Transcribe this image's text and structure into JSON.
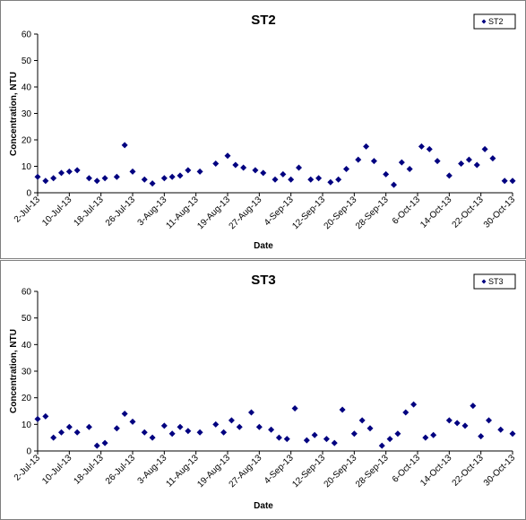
{
  "chart_data": [
    {
      "type": "scatter",
      "title": "ST2",
      "xlabel": "Date",
      "ylabel": "Concentration, NTU",
      "ylim": [
        0,
        60
      ],
      "yticks": [
        0,
        10,
        20,
        30,
        40,
        50,
        60
      ],
      "xlim": [
        "2013-07-02",
        "2013-10-30"
      ],
      "xticks": [
        "2-Jul-13",
        "10-Jul-13",
        "18-Jul-13",
        "26-Jul-13",
        "3-Aug-13",
        "11-Aug-13",
        "19-Aug-13",
        "27-Aug-13",
        "4-Sep-13",
        "12-Sep-13",
        "20-Sep-13",
        "28-Sep-13",
        "6-Oct-13",
        "14-Oct-13",
        "22-Oct-13",
        "30-Oct-13"
      ],
      "legend": "top-right",
      "grid": false,
      "marker_color": "#000080",
      "series": [
        {
          "name": "ST2",
          "x": [
            "2013-07-02",
            "2013-07-04",
            "2013-07-06",
            "2013-07-08",
            "2013-07-10",
            "2013-07-12",
            "2013-07-15",
            "2013-07-17",
            "2013-07-19",
            "2013-07-22",
            "2013-07-24",
            "2013-07-26",
            "2013-07-29",
            "2013-07-31",
            "2013-08-03",
            "2013-08-05",
            "2013-08-07",
            "2013-08-09",
            "2013-08-12",
            "2013-08-16",
            "2013-08-19",
            "2013-08-21",
            "2013-08-23",
            "2013-08-26",
            "2013-08-28",
            "2013-08-31",
            "2013-09-02",
            "2013-09-04",
            "2013-09-06",
            "2013-09-09",
            "2013-09-11",
            "2013-09-14",
            "2013-09-16",
            "2013-09-18",
            "2013-09-21",
            "2013-09-23",
            "2013-09-25",
            "2013-09-28",
            "2013-09-30",
            "2013-10-02",
            "2013-10-04",
            "2013-10-07",
            "2013-10-09",
            "2013-10-11",
            "2013-10-14",
            "2013-10-17",
            "2013-10-19",
            "2013-10-21",
            "2013-10-23",
            "2013-10-25",
            "2013-10-28",
            "2013-10-30"
          ],
          "y": [
            6,
            4.5,
            5.5,
            7.5,
            8,
            8.5,
            5.5,
            4.5,
            5.5,
            6,
            18,
            8,
            5,
            3.5,
            5.5,
            6,
            6.5,
            8.5,
            8,
            11,
            14,
            10.5,
            9.5,
            8.5,
            7.5,
            5,
            7,
            5,
            9.5,
            5,
            5.5,
            4,
            5,
            9,
            12.5,
            17.5,
            12,
            7,
            3,
            11.5,
            9,
            17.5,
            16.5,
            12,
            6.5,
            11,
            12.5,
            10.5,
            16.5,
            13,
            4.5,
            4.5
          ]
        }
      ]
    },
    {
      "type": "scatter",
      "title": "ST3",
      "xlabel": "Date",
      "ylabel": "Concentration, NTU",
      "ylim": [
        0,
        60
      ],
      "yticks": [
        0,
        10,
        20,
        30,
        40,
        50,
        60
      ],
      "xlim": [
        "2013-07-02",
        "2013-10-30"
      ],
      "xticks": [
        "2-Jul-13",
        "10-Jul-13",
        "18-Jul-13",
        "26-Jul-13",
        "3-Aug-13",
        "11-Aug-13",
        "19-Aug-13",
        "27-Aug-13",
        "4-Sep-13",
        "12-Sep-13",
        "20-Sep-13",
        "28-Sep-13",
        "6-Oct-13",
        "14-Oct-13",
        "22-Oct-13",
        "30-Oct-13"
      ],
      "legend": "top-right",
      "grid": false,
      "marker_color": "#000080",
      "series": [
        {
          "name": "ST3",
          "x": [
            "2013-07-02",
            "2013-07-04",
            "2013-07-06",
            "2013-07-08",
            "2013-07-10",
            "2013-07-12",
            "2013-07-15",
            "2013-07-17",
            "2013-07-19",
            "2013-07-22",
            "2013-07-24",
            "2013-07-26",
            "2013-07-29",
            "2013-07-31",
            "2013-08-03",
            "2013-08-05",
            "2013-08-07",
            "2013-08-09",
            "2013-08-12",
            "2013-08-16",
            "2013-08-18",
            "2013-08-20",
            "2013-08-22",
            "2013-08-25",
            "2013-08-27",
            "2013-08-30",
            "2013-09-01",
            "2013-09-03",
            "2013-09-05",
            "2013-09-08",
            "2013-09-10",
            "2013-09-13",
            "2013-09-15",
            "2013-09-17",
            "2013-09-20",
            "2013-09-22",
            "2013-09-24",
            "2013-09-27",
            "2013-09-29",
            "2013-10-01",
            "2013-10-03",
            "2013-10-05",
            "2013-10-08",
            "2013-10-10",
            "2013-10-14",
            "2013-10-16",
            "2013-10-18",
            "2013-10-20",
            "2013-10-22",
            "2013-10-24",
            "2013-10-27",
            "2013-10-30"
          ],
          "y": [
            12,
            13,
            5,
            7,
            9,
            7,
            9,
            2,
            3,
            8.5,
            14,
            11,
            7,
            5,
            9.5,
            6.5,
            9,
            7.5,
            7,
            10,
            7,
            11.5,
            9,
            14.5,
            9,
            8,
            5,
            4.5,
            16,
            4,
            6,
            4.5,
            3,
            15.5,
            6.5,
            11.5,
            8.5,
            2,
            4.5,
            6.5,
            14.5,
            17.5,
            5,
            6,
            11.5,
            10.5,
            9.5,
            17,
            5.5,
            11.5,
            8,
            6.5
          ]
        }
      ]
    }
  ]
}
